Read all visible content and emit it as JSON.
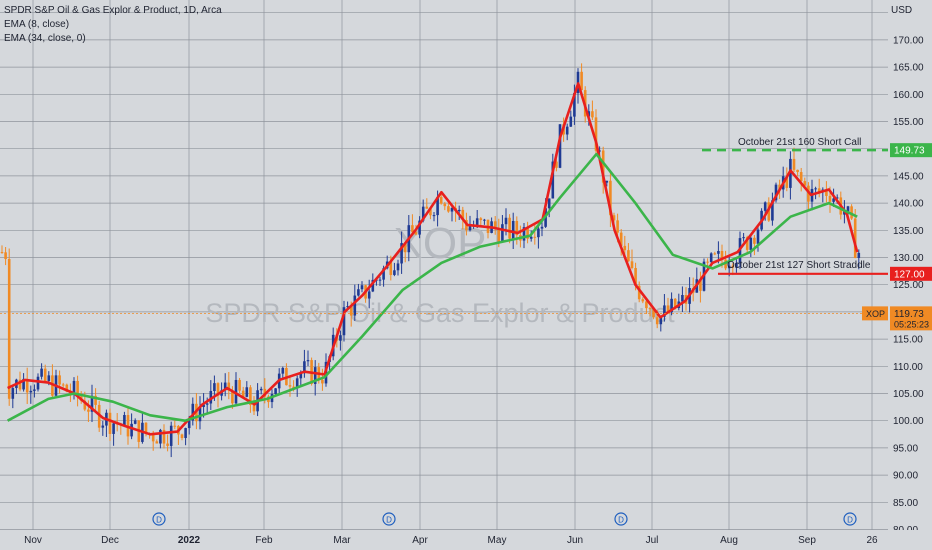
{
  "legend": {
    "title": "SPDR S&P Oil & Gas Explor & Product, 1D, Arca",
    "ema_fast": "EMA (8, close)",
    "ema_slow": "EMA (34, close, 0)"
  },
  "watermark": {
    "symbol": "XOP",
    "name": "SPDR S&P Oil & Gas Explor & Product"
  },
  "colors": {
    "background": "#d5d8dc",
    "grid": "#8f949c",
    "up_candle": "#1f3a93",
    "down_candle": "#f08a24",
    "ema_fast": "#e8201e",
    "ema_slow": "#3bb54a",
    "call_line": "#3bb54a",
    "straddle_line": "#e8201e",
    "price_line": "#f08a24"
  },
  "chart_data": {
    "type": "candlestick",
    "symbol": "XOP",
    "timeframe": "1D",
    "currency": "USD",
    "ylim": [
      80,
      180
    ],
    "yticks": [
      80,
      85,
      90,
      95,
      100,
      105,
      110,
      115,
      120,
      125,
      130,
      135,
      140,
      145,
      150,
      155,
      160,
      165,
      170,
      175
    ],
    "y_axis_title": "USD",
    "x_labels": [
      "Nov",
      "Dec",
      "2022",
      "Feb",
      "Mar",
      "Apr",
      "May",
      "Jun",
      "Jul",
      "Aug",
      "Sep",
      "26"
    ],
    "grid": true,
    "series": [
      {
        "name": "EMA (8, close)",
        "points": [
          [
            "Oct 25",
            106
          ],
          [
            "Nov 1",
            107.5
          ],
          [
            "Nov 10",
            107
          ],
          [
            "Nov 20",
            105
          ],
          [
            "Dec 1",
            100.5
          ],
          [
            "Dec 10",
            99
          ],
          [
            "Dec 20",
            97.5
          ],
          [
            "Dec 31",
            98
          ],
          [
            "Jan 10",
            103
          ],
          [
            "Jan 20",
            106
          ],
          [
            "Jan 31",
            103
          ],
          [
            "Feb 10",
            107.5
          ],
          [
            "Feb 20",
            109
          ],
          [
            "Feb 28",
            108.5
          ],
          [
            "Mar 8",
            120
          ],
          [
            "Mar 15",
            123
          ],
          [
            "Mar 25",
            128.5
          ],
          [
            "Apr 5",
            135
          ],
          [
            "Apr 15",
            142
          ],
          [
            "Apr 25",
            136
          ],
          [
            "May 5",
            135.5
          ],
          [
            "May 15",
            134.5
          ],
          [
            "May 25",
            137
          ],
          [
            "Jun 1",
            152
          ],
          [
            "Jun 8",
            162
          ],
          [
            "Jun 15",
            151
          ],
          [
            "Jun 22",
            135
          ],
          [
            "Jun 30",
            125
          ],
          [
            "Jul 10",
            119
          ],
          [
            "Jul 20",
            122
          ],
          [
            "Jul 31",
            129
          ],
          [
            "Aug 10",
            131
          ],
          [
            "Aug 20",
            137
          ],
          [
            "Aug 31",
            146
          ],
          [
            "Sep 8",
            141.5
          ],
          [
            "Sep 15",
            142.5
          ],
          [
            "Sep 22",
            138
          ],
          [
            "Sep 26",
            131
          ]
        ]
      },
      {
        "name": "EMA (34, close, 0)",
        "points": [
          [
            "Oct 25",
            100
          ],
          [
            "Nov 10",
            104
          ],
          [
            "Nov 20",
            105
          ],
          [
            "Dec 5",
            103.5
          ],
          [
            "Dec 20",
            101
          ],
          [
            "Jan 3",
            100
          ],
          [
            "Jan 20",
            102.5
          ],
          [
            "Feb 5",
            104
          ],
          [
            "Feb 28",
            108
          ],
          [
            "Mar 15",
            115.5
          ],
          [
            "Mar 31",
            124
          ],
          [
            "Apr 15",
            129
          ],
          [
            "Apr 30",
            132
          ],
          [
            "May 20",
            134
          ],
          [
            "Jun 1",
            141
          ],
          [
            "Jun 15",
            149
          ],
          [
            "Jun 30",
            140
          ],
          [
            "Jul 15",
            130.5
          ],
          [
            "Jul 31",
            128
          ],
          [
            "Aug 15",
            131
          ],
          [
            "Aug 31",
            137.5
          ],
          [
            "Sep 15",
            140
          ],
          [
            "Sep 26",
            137.5
          ]
        ]
      }
    ],
    "annotations": [
      {
        "text": "October 21st 160 Short Call",
        "level": 149.73,
        "style": "dashed",
        "color": "#3bb54a",
        "price_label": "149.73"
      },
      {
        "text": "October 21st 127 Short Straddle",
        "level": 127.0,
        "style": "solid",
        "color": "#e8201e",
        "price_label": "127.00"
      }
    ],
    "last_price": {
      "ticker": "XOP",
      "value": 119.73,
      "price_label": "119.73",
      "countdown": "05:25:23"
    },
    "dividend_markers": [
      "Dec",
      "Mar",
      "Jun",
      "Sep"
    ]
  }
}
